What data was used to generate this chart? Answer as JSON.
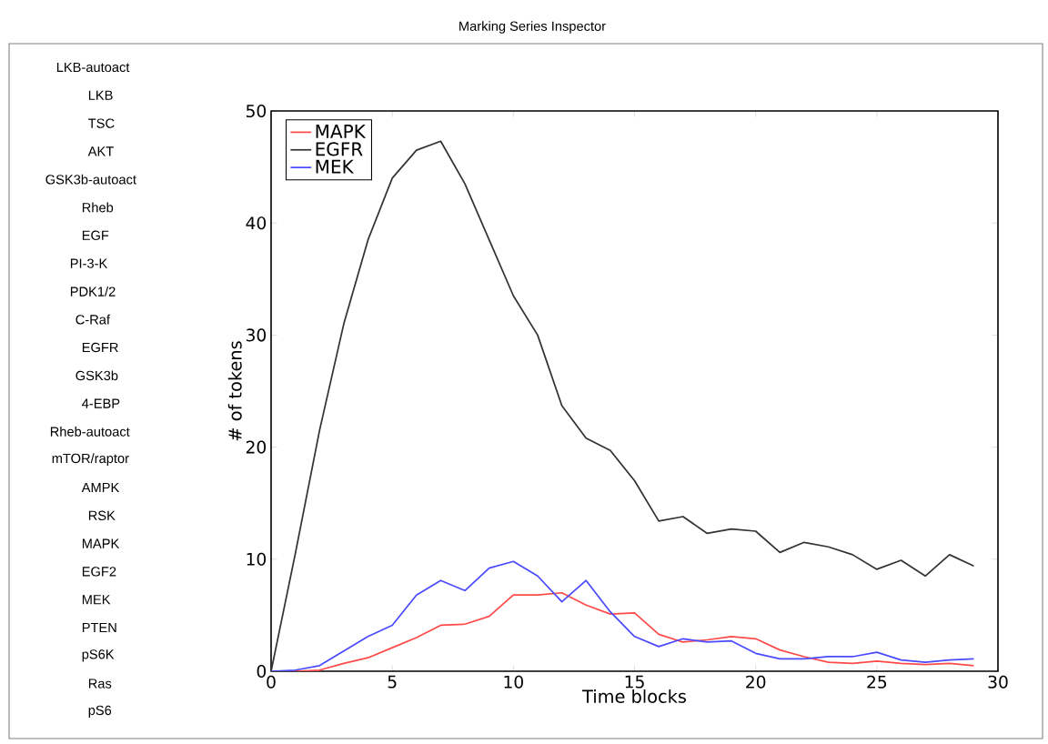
{
  "chart_data": {
    "type": "line",
    "title": "Marking Series Inspector",
    "xlabel": "Time blocks",
    "ylabel": "# of tokens",
    "annotations": [
      "LKB-autoact",
      "LKB",
      "TSC",
      "AKT",
      "GSK3b-autoact",
      "Rheb",
      "EGF",
      "PI-3-K",
      "PDK1/2",
      "C-Raf",
      "EGFR",
      "GSK3b",
      "4-EBP",
      "Rheb-autoact",
      "mTOR/raptor",
      "AMPK",
      "RSK",
      "MAPK",
      "EGF2",
      "MEK",
      "PTEN",
      "pS6K",
      "Ras",
      "pS6"
    ],
    "x": [
      0,
      1,
      2,
      3,
      4,
      5,
      6,
      7,
      8,
      9,
      10,
      11,
      12,
      13,
      14,
      15,
      16,
      17,
      18,
      19,
      20,
      21,
      22,
      23,
      24,
      25,
      26,
      27,
      28,
      29
    ],
    "xlim": [
      0,
      30
    ],
    "ylim": [
      0,
      50
    ],
    "xticks": [
      0,
      5,
      10,
      15,
      20,
      25,
      30
    ],
    "yticks": [
      0,
      10,
      20,
      30,
      40,
      50
    ],
    "legend": "top left",
    "series": [
      {
        "name": "MAPK",
        "color": "#ff4a4a",
        "values": [
          0,
          0,
          0.1,
          0.7,
          1.2,
          2.1,
          3,
          4.1,
          4.2,
          4.9,
          6.8,
          6.8,
          7,
          5.9,
          5.1,
          5.2,
          3.3,
          2.6,
          2.8,
          3.1,
          2.9,
          1.9,
          1.3,
          0.8,
          0.7,
          0.9,
          0.7,
          0.6,
          0.7,
          0.5
        ]
      },
      {
        "name": "EGFR",
        "color": "#333333",
        "values": [
          0,
          10.5,
          21.5,
          31,
          38.5,
          44,
          46.5,
          47.3,
          43.5,
          38.5,
          33.5,
          30,
          23.7,
          20.8,
          19.7,
          17,
          13.4,
          13.8,
          12.3,
          12.7,
          12.5,
          10.6,
          11.5,
          11.1,
          10.4,
          9.1,
          9.9,
          8.5,
          10.4,
          9.4
        ]
      },
      {
        "name": "MEK",
        "color": "#4a4aff",
        "values": [
          0,
          0.1,
          0.5,
          1.8,
          3.1,
          4.1,
          6.8,
          8.1,
          7.2,
          9.2,
          9.8,
          8.5,
          6.2,
          8.1,
          5.3,
          3.1,
          2.2,
          2.9,
          2.6,
          2.7,
          1.6,
          1.1,
          1.1,
          1.3,
          1.3,
          1.7,
          1.0,
          0.8,
          1.0,
          1.1
        ]
      }
    ]
  }
}
